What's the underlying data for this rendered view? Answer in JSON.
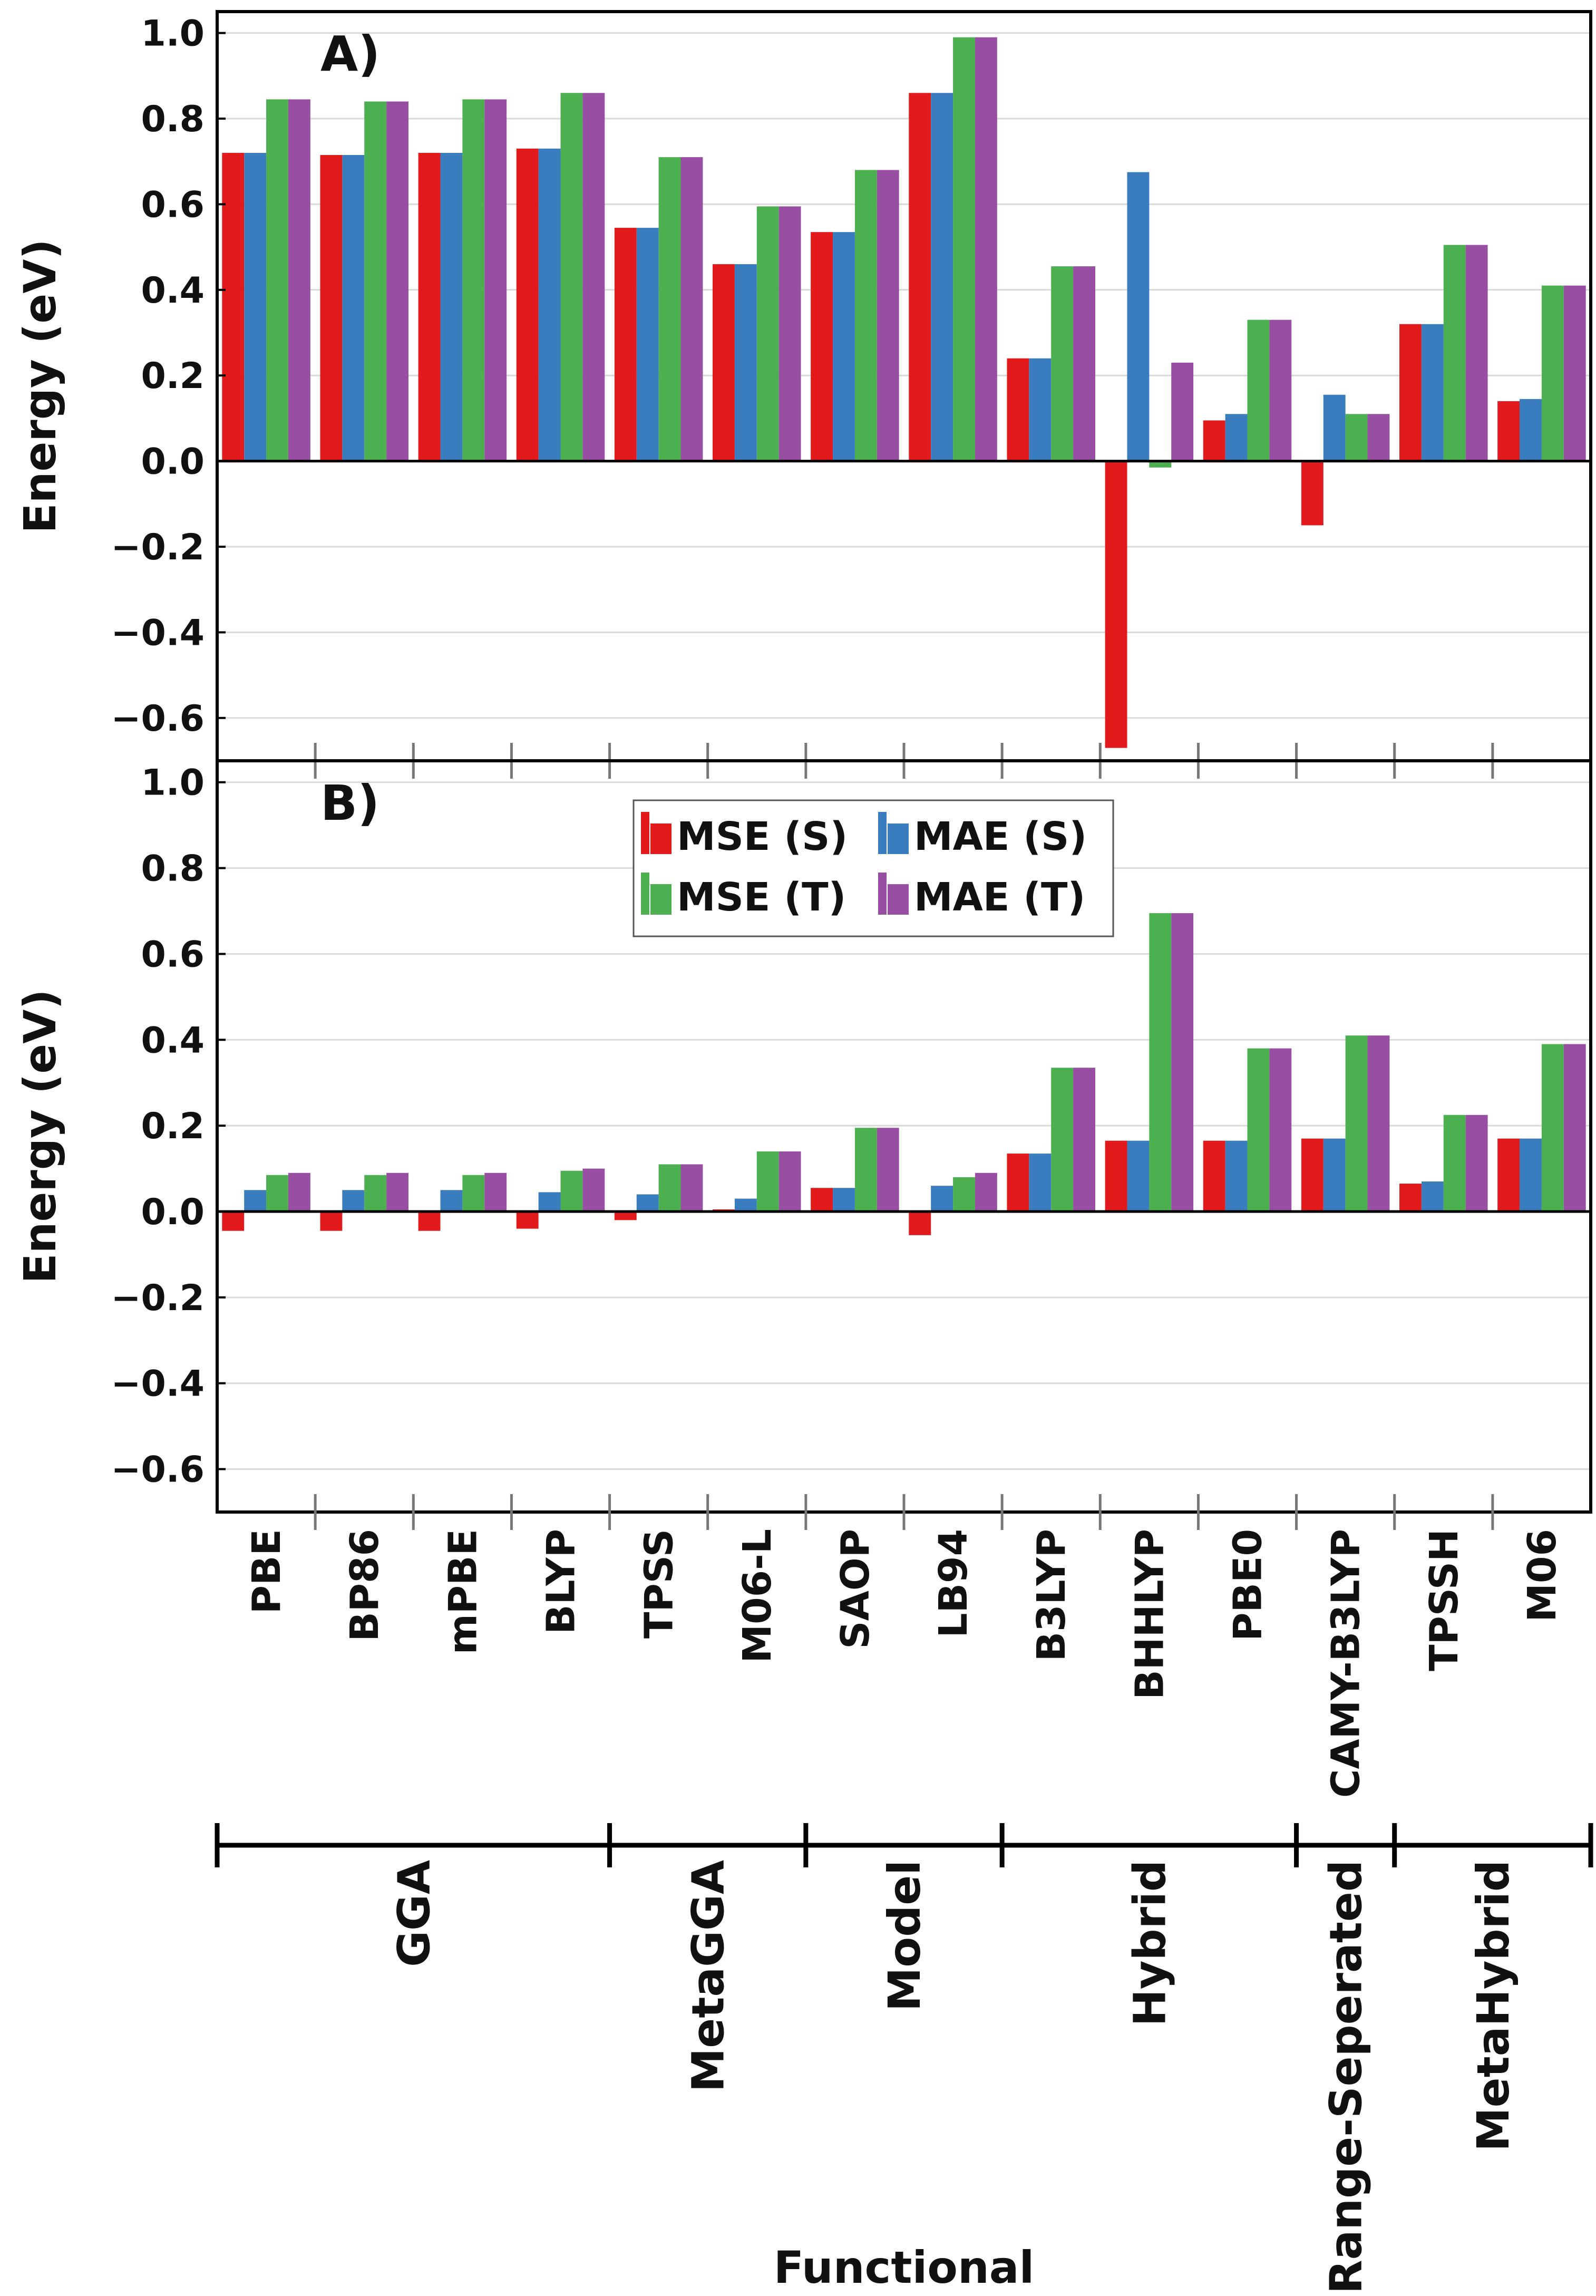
{
  "chart_data": {
    "type": "bar",
    "xlabel": "Functional",
    "ylabel": "Energy (eV)",
    "ylim": [
      -0.7,
      1.05
    ],
    "yticks": [
      -0.6,
      -0.4,
      -0.2,
      0.0,
      0.2,
      0.4,
      0.6,
      0.8,
      1.0
    ],
    "ytick_labels": [
      "−0.6",
      "−0.4",
      "−0.2",
      "0.0",
      "0.2",
      "0.4",
      "0.6",
      "0.8",
      "1.0"
    ],
    "grid": true,
    "legend_position": "top-center (panel B)",
    "categories": [
      "PBE",
      "BP86",
      "mPBE",
      "BLYP",
      "TPSS",
      "M06-L",
      "SAOP",
      "LB94",
      "B3LYP",
      "BHHLYP",
      "PBE0",
      "CAMY-B3LYP",
      "TPSSH",
      "M06"
    ],
    "category_groups": [
      {
        "name": "GGA",
        "count": 4
      },
      {
        "name": "MetaGGA",
        "count": 2
      },
      {
        "name": "Model",
        "count": 2
      },
      {
        "name": "Hybrid",
        "count": 3
      },
      {
        "name": "Range-Seperated",
        "count": 1
      },
      {
        "name": "MetaHybrid",
        "count": 2
      }
    ],
    "series_styles": [
      {
        "name": "MSE (S)",
        "color": "#e31a1c"
      },
      {
        "name": "MAE (S)",
        "color": "#3a7dbf"
      },
      {
        "name": "MSE (T)",
        "color": "#4caf50"
      },
      {
        "name": "MAE (T)",
        "color": "#984ea3"
      }
    ],
    "panels": [
      {
        "label": "A)",
        "series": [
          {
            "name": "MSE (S)",
            "values": [
              0.72,
              0.715,
              0.72,
              0.73,
              0.545,
              0.46,
              0.535,
              0.86,
              0.24,
              -0.67,
              0.095,
              -0.15,
              0.32,
              0.14
            ]
          },
          {
            "name": "MAE (S)",
            "values": [
              0.72,
              0.715,
              0.72,
              0.73,
              0.545,
              0.46,
              0.535,
              0.86,
              0.24,
              0.675,
              0.11,
              0.155,
              0.32,
              0.145
            ]
          },
          {
            "name": "MSE (T)",
            "values": [
              0.845,
              0.84,
              0.845,
              0.86,
              0.71,
              0.595,
              0.68,
              0.99,
              0.455,
              -0.015,
              0.33,
              0.11,
              0.505,
              0.41
            ]
          },
          {
            "name": "MAE (T)",
            "values": [
              0.845,
              0.84,
              0.845,
              0.86,
              0.71,
              0.595,
              0.68,
              0.99,
              0.455,
              0.23,
              0.33,
              0.11,
              0.505,
              0.41
            ]
          }
        ]
      },
      {
        "label": "B)",
        "series": [
          {
            "name": "MSE (S)",
            "values": [
              -0.045,
              -0.045,
              -0.045,
              -0.04,
              -0.02,
              0.005,
              0.055,
              -0.055,
              0.135,
              0.165,
              0.165,
              0.17,
              0.065,
              0.17
            ]
          },
          {
            "name": "MAE (S)",
            "values": [
              0.05,
              0.05,
              0.05,
              0.045,
              0.04,
              0.03,
              0.055,
              0.06,
              0.135,
              0.165,
              0.165,
              0.17,
              0.07,
              0.17
            ]
          },
          {
            "name": "MSE (T)",
            "values": [
              0.085,
              0.085,
              0.085,
              0.095,
              0.11,
              0.14,
              0.195,
              0.08,
              0.335,
              0.695,
              0.38,
              0.41,
              0.225,
              0.39
            ]
          },
          {
            "name": "MAE (T)",
            "values": [
              0.09,
              0.09,
              0.09,
              0.1,
              0.11,
              0.14,
              0.195,
              0.09,
              0.335,
              0.695,
              0.38,
              0.41,
              0.225,
              0.39
            ]
          }
        ]
      }
    ]
  }
}
